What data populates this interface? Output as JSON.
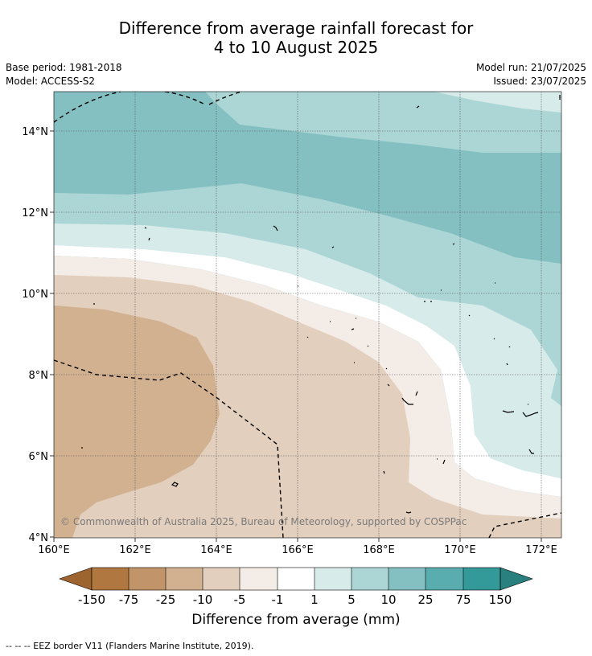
{
  "header": {
    "title_line1": "Difference from average rainfall forecast for",
    "title_line2": "4 to 10 August 2025",
    "base_period": "Base period: 1981-2018",
    "model": "Model: ACCESS-S2",
    "model_run": "Model run: 21/07/2025",
    "issued": "Issued: 23/07/2025"
  },
  "map": {
    "lon_labels": [
      "160°E",
      "162°E",
      "164°E",
      "166°E",
      "168°E",
      "170°E",
      "172°E"
    ],
    "lat_labels": [
      "14°N",
      "12°N",
      "10°N",
      "8°N",
      "6°N",
      "4°N"
    ],
    "copyright": "© Commonwealth of Australia 2025, Bureau of Meteorology, supported by COSPPac"
  },
  "colorbar": {
    "title": "Difference from average (mm)",
    "tick_labels": [
      "-150",
      "-75",
      "-25",
      "-10",
      "-5",
      "-1",
      "1",
      "5",
      "10",
      "25",
      "75",
      "150"
    ],
    "colors": {
      "extend_low": "#9e6430",
      "c1": "#b07840",
      "c2": "#c19569",
      "c3": "#d2b190",
      "c4": "#e3cfbd",
      "c5": "#f4ece6",
      "c6": "#ffffff",
      "c7": "#d7ebea",
      "c8": "#acd6d5",
      "c9": "#84c0c1",
      "c10": "#59adae",
      "c11": "#339a99",
      "extend_high": "#2a807f"
    }
  },
  "footnote": "--  --  -- EEZ border V11 (Flanders Marine Institute, 2019)."
}
